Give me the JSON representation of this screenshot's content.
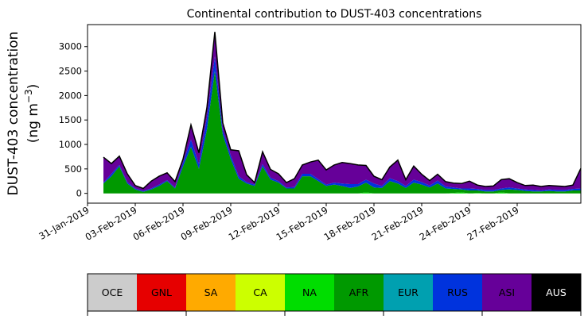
{
  "chart_data": {
    "type": "area",
    "title": "Continental contribution to DUST-403 concentrations",
    "ylabel_line1": "DUST-403 concentration",
    "ylabel_line2_prefix": "(ng m",
    "ylabel_line2_sup": "−3",
    "ylabel_line2_suffix": ")",
    "xlabel": "",
    "x_start": "2019-02-01",
    "x_step_days": 0.5,
    "xlim": [
      "2019-01-31",
      "2019-03-03"
    ],
    "ylim": [
      -200,
      3450
    ],
    "yticks": [
      0,
      500,
      1000,
      1500,
      2000,
      2500,
      3000
    ],
    "xticks": [
      {
        "date": "2019-01-31",
        "label": "31-Jan-2019"
      },
      {
        "date": "2019-02-03",
        "label": "03-Feb-2019"
      },
      {
        "date": "2019-02-06",
        "label": "06-Feb-2019"
      },
      {
        "date": "2019-02-09",
        "label": "09-Feb-2019"
      },
      {
        "date": "2019-02-12",
        "label": "12-Feb-2019"
      },
      {
        "date": "2019-02-15",
        "label": "15-Feb-2019"
      },
      {
        "date": "2019-02-18",
        "label": "18-Feb-2019"
      },
      {
        "date": "2019-02-21",
        "label": "21-Feb-2019"
      },
      {
        "date": "2019-02-24",
        "label": "24-Feb-2019"
      },
      {
        "date": "2019-02-27",
        "label": "27-Feb-2019"
      }
    ],
    "total_line_color": "#000000",
    "series": [
      {
        "name": "OCE",
        "color": "#cccccc",
        "values": [
          0,
          0,
          0,
          0,
          0,
          0,
          0,
          0,
          0,
          0,
          0,
          0,
          0,
          0,
          0,
          0,
          0,
          0,
          0,
          0,
          0,
          0,
          0,
          0,
          0,
          0,
          0,
          0,
          0,
          0,
          0,
          0,
          0,
          0,
          0,
          0,
          0,
          0,
          0,
          0,
          0,
          0,
          0,
          0,
          0,
          0,
          0,
          0,
          0,
          0,
          0,
          0,
          0,
          0,
          0,
          0,
          0,
          0,
          0,
          0,
          0
        ]
      },
      {
        "name": "GNL",
        "color": "#e60000",
        "values": [
          0,
          0,
          0,
          0,
          0,
          0,
          0,
          0,
          0,
          0,
          0,
          0,
          0,
          0,
          0,
          0,
          0,
          0,
          0,
          0,
          0,
          0,
          0,
          0,
          0,
          0,
          0,
          0,
          0,
          0,
          0,
          0,
          0,
          0,
          0,
          0,
          0,
          0,
          0,
          0,
          0,
          0,
          0,
          0,
          0,
          0,
          0,
          0,
          0,
          0,
          0,
          0,
          0,
          0,
          0,
          0,
          0,
          0,
          0,
          0,
          0
        ]
      },
      {
        "name": "SA",
        "color": "#ffaa00",
        "values": [
          0,
          0,
          0,
          0,
          0,
          0,
          0,
          0,
          0,
          0,
          0,
          0,
          0,
          0,
          0,
          0,
          0,
          0,
          0,
          0,
          0,
          0,
          0,
          0,
          0,
          0,
          0,
          0,
          0,
          0,
          0,
          0,
          0,
          0,
          0,
          0,
          0,
          0,
          0,
          0,
          0,
          0,
          0,
          0,
          0,
          0,
          0,
          0,
          0,
          0,
          0,
          0,
          0,
          0,
          0,
          0,
          0,
          0,
          0,
          0,
          0
        ]
      },
      {
        "name": "CA",
        "color": "#ccff00",
        "values": [
          0,
          0,
          0,
          0,
          0,
          0,
          0,
          0,
          0,
          0,
          0,
          0,
          0,
          0,
          0,
          0,
          0,
          0,
          0,
          0,
          0,
          0,
          0,
          0,
          0,
          0,
          0,
          0,
          0,
          0,
          0,
          0,
          0,
          0,
          0,
          0,
          0,
          0,
          0,
          0,
          0,
          0,
          0,
          0,
          0,
          0,
          0,
          0,
          0,
          0,
          0,
          0,
          0,
          0,
          0,
          0,
          0,
          0,
          0,
          0,
          0
        ]
      },
      {
        "name": "NA",
        "color": "#00dd00",
        "values": [
          0,
          0,
          0,
          0,
          0,
          0,
          0,
          0,
          0,
          0,
          0,
          0,
          0,
          0,
          0,
          0,
          0,
          0,
          0,
          0,
          0,
          0,
          0,
          0,
          0,
          0,
          0,
          0,
          0,
          0,
          0,
          0,
          0,
          20,
          0,
          0,
          0,
          0,
          0,
          0,
          0,
          0,
          0,
          0,
          10,
          20,
          0,
          10,
          0,
          0,
          20,
          0,
          0,
          0,
          0,
          0,
          0,
          0,
          0,
          0,
          0
        ]
      },
      {
        "name": "AFR",
        "color": "#009900",
        "values": [
          200,
          350,
          550,
          200,
          80,
          30,
          80,
          150,
          250,
          100,
          550,
          950,
          500,
          1300,
          2500,
          1200,
          700,
          300,
          200,
          150,
          550,
          280,
          220,
          100,
          100,
          350,
          350,
          250,
          150,
          180,
          150,
          110,
          140,
          200,
          120,
          110,
          250,
          200,
          110,
          220,
          180,
          120,
          200,
          100,
          80,
          60,
          60,
          50,
          40,
          40,
          50,
          80,
          70,
          50,
          40,
          40,
          50,
          40,
          40,
          60,
          60
        ]
      },
      {
        "name": "EUR",
        "color": "#00a0b0",
        "values": [
          0,
          0,
          0,
          0,
          0,
          0,
          0,
          0,
          0,
          0,
          0,
          0,
          0,
          0,
          0,
          0,
          0,
          0,
          0,
          0,
          0,
          0,
          0,
          0,
          0,
          0,
          0,
          0,
          0,
          0,
          0,
          0,
          0,
          0,
          0,
          0,
          0,
          0,
          0,
          0,
          0,
          0,
          0,
          0,
          0,
          0,
          0,
          0,
          0,
          0,
          0,
          0,
          0,
          0,
          0,
          0,
          0,
          0,
          0,
          0,
          0
        ]
      },
      {
        "name": "RUS",
        "color": "#0033dd",
        "values": [
          20,
          50,
          30,
          30,
          20,
          20,
          20,
          30,
          20,
          20,
          80,
          150,
          100,
          250,
          300,
          100,
          80,
          50,
          30,
          30,
          50,
          40,
          30,
          20,
          30,
          50,
          50,
          40,
          30,
          40,
          50,
          80,
          50,
          60,
          80,
          40,
          60,
          50,
          40,
          60,
          50,
          40,
          60,
          40,
          30,
          20,
          40,
          30,
          30,
          30,
          30,
          40,
          30,
          30,
          30,
          20,
          30,
          30,
          30,
          30,
          40
        ]
      },
      {
        "name": "ASI",
        "color": "#660099",
        "values": [
          520,
          210,
          180,
          170,
          60,
          50,
          150,
          170,
          150,
          120,
          70,
          300,
          230,
          200,
          500,
          140,
          110,
          520,
          150,
          40,
          250,
          170,
          150,
          100,
          170,
          180,
          240,
          390,
          300,
          360,
          430,
          420,
          390,
          290,
          150,
          130,
          230,
          430,
          130,
          280,
          160,
          100,
          130,
          100,
          90,
          100,
          150,
          80,
          70,
          80,
          180,
          180,
          120,
          80,
          100,
          80,
          80,
          80,
          70,
          80,
          410
        ]
      },
      {
        "name": "AUS",
        "color": "#000000",
        "values": [
          0,
          0,
          0,
          0,
          0,
          0,
          0,
          0,
          0,
          0,
          0,
          0,
          0,
          0,
          0,
          0,
          0,
          0,
          0,
          0,
          0,
          0,
          0,
          0,
          0,
          0,
          0,
          0,
          0,
          0,
          0,
          0,
          0,
          0,
          0,
          0,
          0,
          0,
          0,
          0,
          0,
          0,
          0,
          0,
          0,
          0,
          0,
          0,
          0,
          0,
          0,
          0,
          0,
          0,
          0,
          0,
          0,
          0,
          0,
          0,
          0
        ]
      }
    ]
  },
  "legend": {
    "items": [
      {
        "label": "OCE",
        "color": "#cccccc",
        "text_color": "#000000"
      },
      {
        "label": "GNL",
        "color": "#e60000",
        "text_color": "#000000"
      },
      {
        "label": "SA",
        "color": "#ffaa00",
        "text_color": "#000000"
      },
      {
        "label": "CA",
        "color": "#ccff00",
        "text_color": "#000000"
      },
      {
        "label": "NA",
        "color": "#00dd00",
        "text_color": "#000000"
      },
      {
        "label": "AFR",
        "color": "#009900",
        "text_color": "#000000"
      },
      {
        "label": "EUR",
        "color": "#00a0b0",
        "text_color": "#000000"
      },
      {
        "label": "RUS",
        "color": "#0033dd",
        "text_color": "#000000"
      },
      {
        "label": "ASI",
        "color": "#660099",
        "text_color": "#000000"
      },
      {
        "label": "AUS",
        "color": "#000000",
        "text_color": "#ffffff"
      }
    ]
  }
}
